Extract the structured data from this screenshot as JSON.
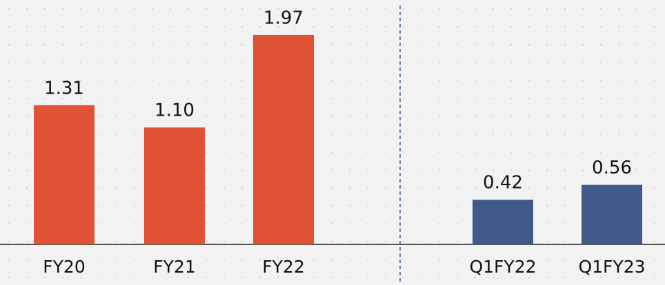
{
  "chart_data": {
    "type": "bar",
    "categories": [
      "FY20",
      "FY21",
      "FY22",
      "Q1FY22",
      "Q1FY23"
    ],
    "values": [
      1.31,
      1.1,
      1.97,
      0.42,
      0.56
    ],
    "value_labels": [
      "1.31",
      "1.10",
      "1.97",
      "0.42",
      "0.56"
    ],
    "colors": [
      "#e05234",
      "#e05234",
      "#e05234",
      "#3f5a89",
      "#3f5a89"
    ],
    "ylim": [
      0,
      2.3
    ]
  }
}
